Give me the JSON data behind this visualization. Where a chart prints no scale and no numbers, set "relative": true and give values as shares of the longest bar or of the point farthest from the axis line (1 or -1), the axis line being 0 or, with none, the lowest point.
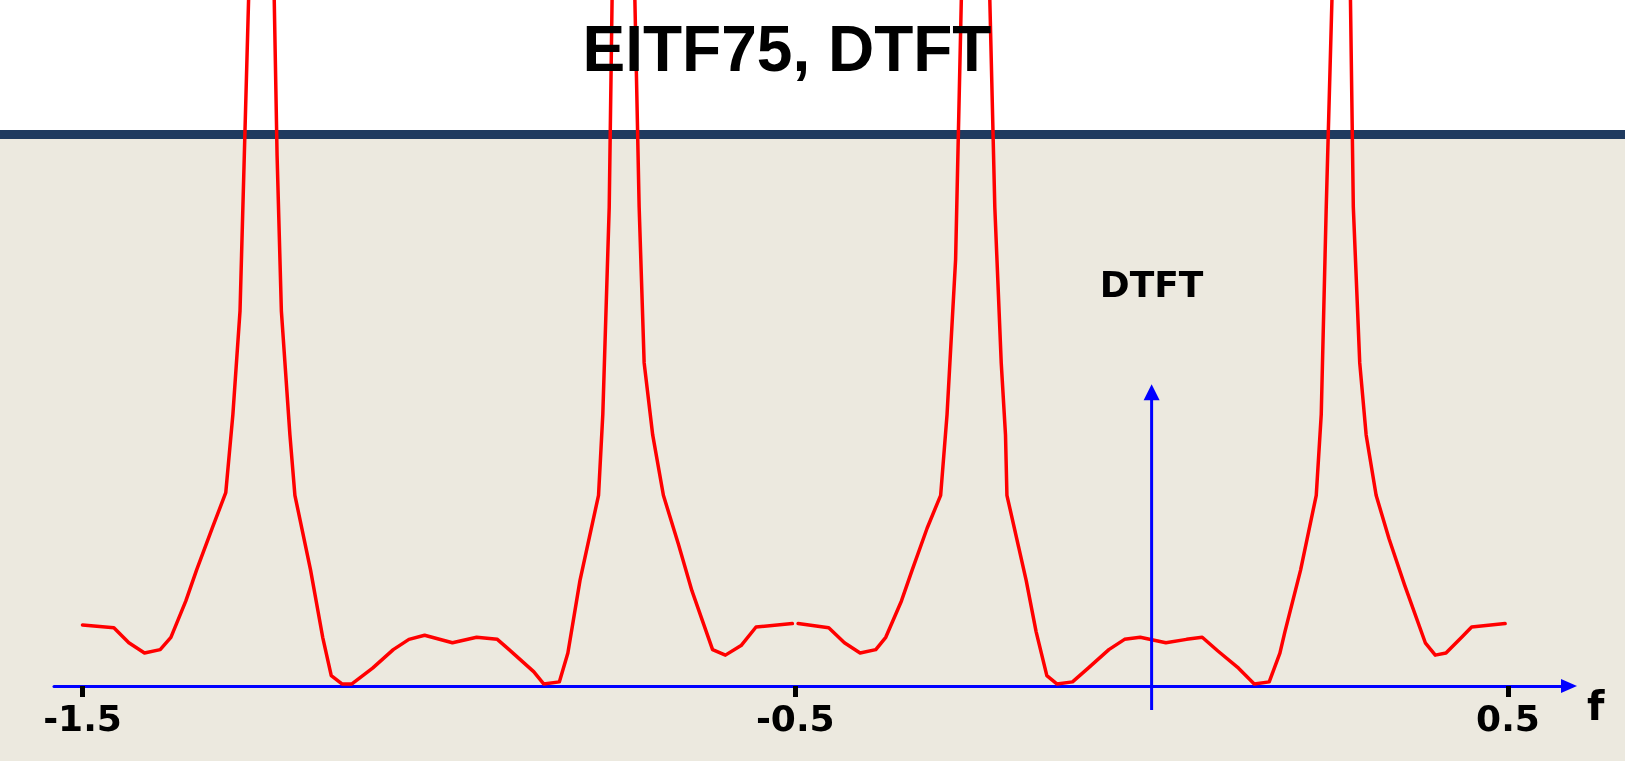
{
  "chart_data": {
    "type": "line",
    "title": "EITF75, DTFT",
    "xlabel": "f",
    "ylabel": "DTFT",
    "relative": true,
    "xlim": [
      -1.54,
      0.58
    ],
    "xticks": [
      -1.5,
      -0.5,
      0.5
    ],
    "marker": "none",
    "line_style": "solid",
    "series": [
      {
        "color": "#ff0000",
        "x": [
          -1.5,
          -1.456,
          -1.435,
          -1.413,
          -1.391,
          -1.376,
          -1.355,
          -1.34,
          -1.318,
          -1.299,
          -1.289,
          -1.279,
          -1.273,
          -1.267,
          -1.249,
          -1.231,
          -1.227,
          -1.221,
          -1.209,
          -1.202,
          -1.18,
          -1.163,
          -1.151,
          -1.136,
          -1.122,
          -1.093,
          -1.064,
          -1.042,
          -1.02,
          -0.981,
          -0.947,
          -0.918,
          -0.896,
          -0.867,
          -0.853,
          -0.831,
          -0.819,
          -0.802,
          -0.776,
          -0.77,
          -0.761,
          -0.757,
          -0.741,
          -0.725,
          -0.719,
          -0.712,
          -0.7,
          -0.685,
          -0.664,
          -0.645,
          -0.616,
          -0.598,
          -0.576,
          -0.555,
          -0.504,
          -0.5,
          -0.496,
          -0.453,
          -0.431,
          -0.409,
          -0.387,
          -0.373,
          -0.351,
          -0.336,
          -0.315,
          -0.296,
          -0.287,
          -0.275,
          -0.267,
          -0.247,
          -0.227,
          -0.22,
          -0.211,
          -0.205,
          -0.203,
          -0.176,
          -0.162,
          -0.147,
          -0.133,
          -0.111,
          -0.089,
          -0.06,
          -0.038,
          -0.016,
          0.02,
          0.049,
          0.071,
          0.093,
          0.122,
          0.144,
          0.165,
          0.18,
          0.187,
          0.209,
          0.231,
          0.238,
          0.245,
          0.253,
          0.266,
          0.279,
          0.283,
          0.292,
          0.301,
          0.315,
          0.333,
          0.355,
          0.384,
          0.398,
          0.413,
          0.435,
          0.449,
          0.496
        ],
        "values": [
          0.089,
          0.085,
          0.063,
          0.048,
          0.053,
          0.071,
          0.124,
          0.169,
          0.23,
          0.282,
          0.396,
          0.547,
          0.773,
          1,
          null,
          1,
          0.773,
          0.547,
          0.366,
          0.278,
          0.169,
          0.071,
          0.015,
          0.003,
          0.003,
          0.026,
          0.053,
          0.068,
          0.074,
          0.063,
          0.071,
          0.068,
          0.048,
          0.021,
          0.003,
          0.006,
          0.048,
          0.154,
          0.278,
          0.396,
          0.698,
          1,
          null,
          1,
          0.698,
          0.471,
          0.366,
          0.278,
          0.207,
          0.139,
          0.053,
          0.045,
          0.059,
          0.086,
          0.091,
          null,
          0.091,
          0.085,
          0.063,
          0.048,
          0.053,
          0.071,
          0.124,
          0.169,
          0.23,
          0.278,
          0.396,
          0.622,
          1,
          null,
          1,
          0.698,
          0.471,
          0.366,
          0.278,
          0.154,
          0.079,
          0.015,
          0.003,
          0.006,
          0.026,
          0.053,
          0.068,
          0.071,
          0.063,
          0.068,
          0.071,
          0.051,
          0.026,
          0.003,
          0.006,
          0.048,
          0.079,
          0.169,
          0.278,
          0.396,
          0.698,
          1,
          null,
          1,
          0.698,
          0.471,
          0.366,
          0.278,
          0.215,
          0.147,
          0.063,
          0.045,
          0.048,
          0.071,
          0.086,
          0.091
        ]
      }
    ]
  }
}
